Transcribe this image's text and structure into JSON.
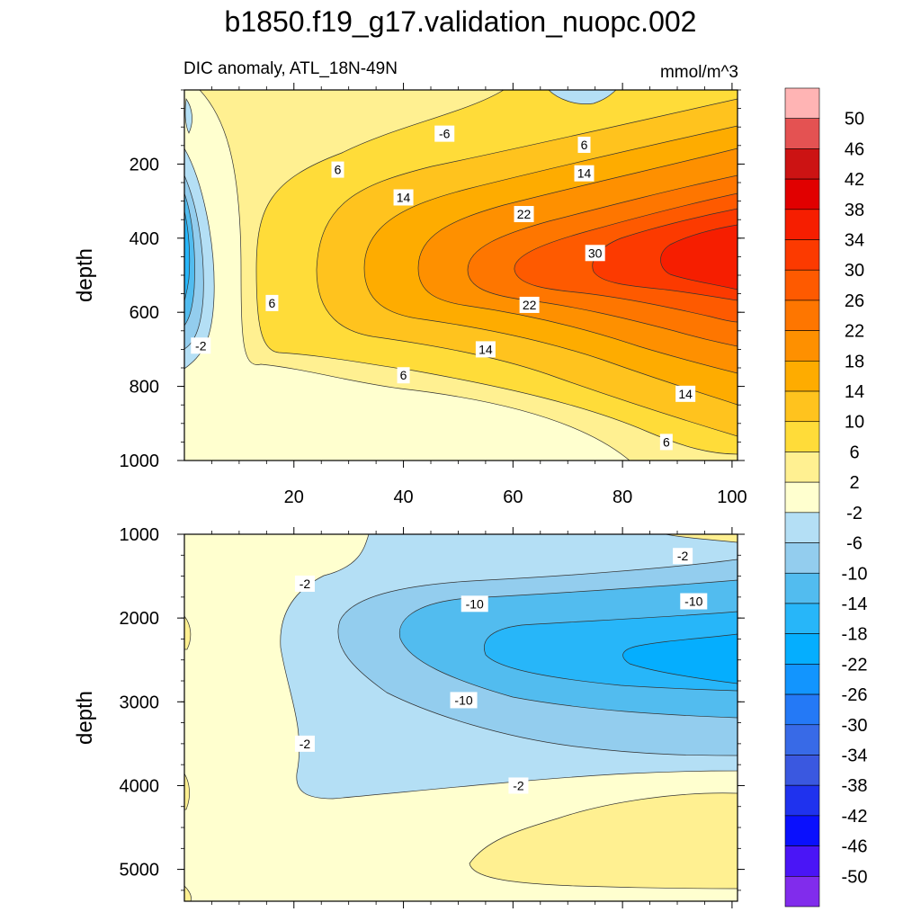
{
  "title": "b1850.f19_g17.validation_nuopc.002",
  "chart_data": [
    {
      "type": "heatmap",
      "panel": "upper",
      "subtitle": "DIC anomaly, ATL_18N-49N",
      "units": "mmol/m^3",
      "xlabel": "",
      "ylabel": "depth",
      "xlim": [
        0,
        101
      ],
      "ylim": [
        1000,
        0
      ],
      "x_ticks": [
        20,
        40,
        60,
        80,
        100
      ],
      "y_ticks": [
        200,
        400,
        600,
        800,
        1000
      ],
      "description": "Positive DIC anomaly growing with time; core ~30-38 mmol/m^3 centred near 450 m depth by year 80-100; weak negative anomaly (-2 to -14) near surface-to-700 m at earliest years.",
      "contour_labels": [
        {
          "text": "6",
          "x": 73,
          "y": 148
        },
        {
          "text": "-6",
          "x": 47.5,
          "y": 118
        },
        {
          "text": "6",
          "x": 28,
          "y": 215
        },
        {
          "text": "14",
          "x": 73,
          "y": 225
        },
        {
          "text": "14",
          "x": 40,
          "y": 290
        },
        {
          "text": "22",
          "x": 62,
          "y": 335
        },
        {
          "text": "30",
          "x": 75,
          "y": 440
        },
        {
          "text": "6",
          "x": 16,
          "y": 575
        },
        {
          "text": "22",
          "x": 63,
          "y": 580
        },
        {
          "text": "-2",
          "x": 3,
          "y": 690
        },
        {
          "text": "14",
          "x": 55,
          "y": 700
        },
        {
          "text": "6",
          "x": 40,
          "y": 770
        },
        {
          "text": "14",
          "x": 91.5,
          "y": 820
        },
        {
          "text": "6",
          "x": 88,
          "y": 950
        }
      ]
    },
    {
      "type": "heatmap",
      "panel": "lower",
      "xlabel": "",
      "ylabel": "depth",
      "xlim": [
        0,
        101
      ],
      "ylim": [
        5380,
        1000
      ],
      "y_ticks": [
        1000,
        2000,
        3000,
        4000,
        5000
      ],
      "description": "Negative DIC anomaly (core ~-18 to -22 mmol/m^3) centred near 2500 m growing with time; weak positive anomaly (2-6) below ~4000 m at later years.",
      "contour_labels": [
        {
          "text": "-2",
          "x": 91,
          "y": 1260
        },
        {
          "text": "-2",
          "x": 22,
          "y": 1590
        },
        {
          "text": "-10",
          "x": 53,
          "y": 1830
        },
        {
          "text": "-10",
          "x": 93,
          "y": 1800
        },
        {
          "text": "-10",
          "x": 51,
          "y": 2980
        },
        {
          "text": "-2",
          "x": 22,
          "y": 3500
        },
        {
          "text": "-2",
          "x": 61,
          "y": 4000
        }
      ]
    }
  ],
  "colorbar": {
    "labels": [
      "50",
      "46",
      "42",
      "38",
      "34",
      "30",
      "26",
      "22",
      "18",
      "14",
      "10",
      "6",
      "2",
      "-2",
      "-6",
      "-10",
      "-14",
      "-18",
      "-22",
      "-26",
      "-30",
      "-34",
      "-38",
      "-42",
      "-46",
      "-50"
    ],
    "colors": [
      "#ffb4b4",
      "#e45252",
      "#cc1313",
      "#e10000",
      "#f61e00",
      "#fc3a00",
      "#fe5a00",
      "#fe7600",
      "#fe9000",
      "#feac00",
      "#ffc31e",
      "#ffdc39",
      "#fff091",
      "#ffffcf",
      "#b4dff5",
      "#93cdee",
      "#52bcef",
      "#27b6f9",
      "#05aefe",
      "#1295fe",
      "#2479f6",
      "#386ae7",
      "#3a58e0",
      "#1f32ee",
      "#0a10fd",
      "#4a15f6",
      "#812cec"
    ]
  }
}
